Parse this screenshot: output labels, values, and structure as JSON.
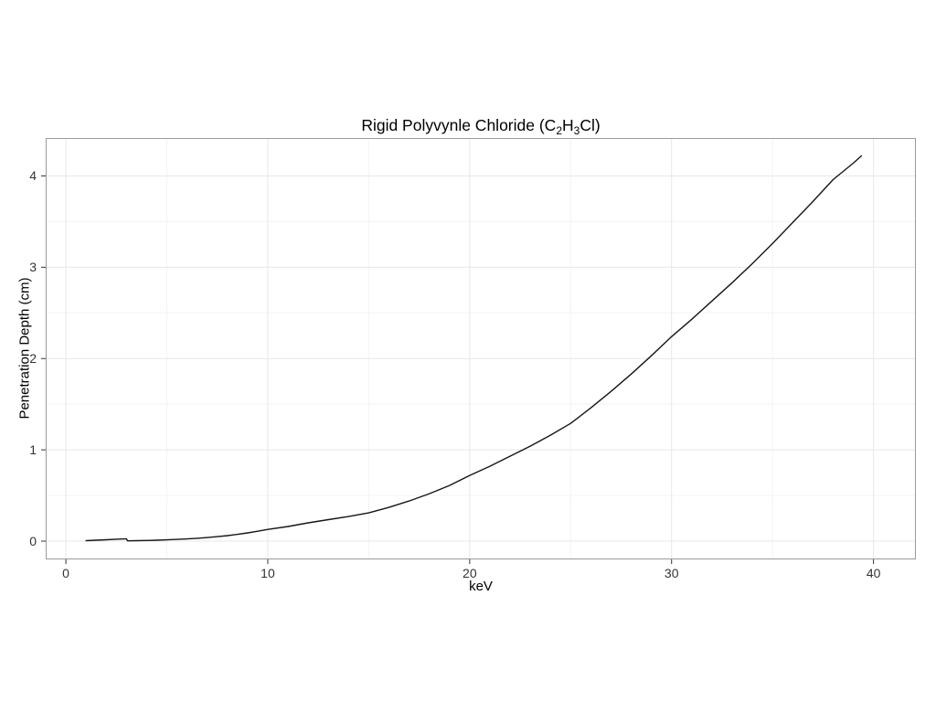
{
  "chart_data": {
    "type": "line",
    "title": "Rigid Polyvynle Chloride (C2H3Cl)",
    "title_parts": {
      "pre": "Rigid Polyvynle Chloride (C",
      "sub1": "2",
      "mid": "H",
      "sub2": "3",
      "post": "Cl)"
    },
    "xlabel": "keV",
    "ylabel": "Penetration Depth (cm)",
    "xlim": [
      -1.0,
      42.1
    ],
    "ylim": [
      -0.2,
      4.415
    ],
    "x_ticks": [
      "0",
      "10",
      "20",
      "30",
      "40"
    ],
    "x_tick_values": [
      0,
      10,
      20,
      30,
      40
    ],
    "y_ticks": [
      "0",
      "1",
      "2",
      "3",
      "4"
    ],
    "y_tick_values": [
      0,
      1,
      2,
      3,
      4
    ],
    "x_minor_values": [
      5,
      15,
      25,
      35
    ],
    "y_minor_values": [
      0.5,
      1.5,
      2.5,
      3.5
    ],
    "grid": "on",
    "legend": "none",
    "series": [
      {
        "name": "penetration-depth",
        "color": "#161616",
        "points": [
          [
            1,
            0.005
          ],
          [
            1.5,
            0.01
          ],
          [
            2,
            0.015
          ],
          [
            2.5,
            0.021
          ],
          [
            3.0,
            0.026
          ],
          [
            3.05,
            0.003
          ],
          [
            3.5,
            0.005
          ],
          [
            4,
            0.007
          ],
          [
            4.5,
            0.01
          ],
          [
            5,
            0.014
          ],
          [
            5.5,
            0.019
          ],
          [
            6,
            0.024
          ],
          [
            6.5,
            0.031
          ],
          [
            7,
            0.039
          ],
          [
            7.5,
            0.049
          ],
          [
            8,
            0.06
          ],
          [
            8.5,
            0.074
          ],
          [
            9,
            0.09
          ],
          [
            9.5,
            0.108
          ],
          [
            10,
            0.128
          ],
          [
            11,
            0.16
          ],
          [
            12,
            0.2
          ],
          [
            13,
            0.235
          ],
          [
            14,
            0.27
          ],
          [
            15,
            0.31
          ],
          [
            16,
            0.37
          ],
          [
            17,
            0.44
          ],
          [
            18,
            0.52
          ],
          [
            19,
            0.61
          ],
          [
            20,
            0.72
          ],
          [
            21,
            0.82
          ],
          [
            22,
            0.93
          ],
          [
            23,
            1.04
          ],
          [
            24,
            1.16
          ],
          [
            25,
            1.29
          ],
          [
            26,
            1.46
          ],
          [
            27,
            1.64
          ],
          [
            28,
            1.83
          ],
          [
            29,
            2.03
          ],
          [
            30,
            2.24
          ],
          [
            31,
            2.43
          ],
          [
            32,
            2.63
          ],
          [
            33,
            2.83
          ],
          [
            34,
            3.04
          ],
          [
            35,
            3.26
          ],
          [
            36,
            3.49
          ],
          [
            37,
            3.72
          ],
          [
            38,
            3.96
          ],
          [
            39,
            4.14
          ],
          [
            39.4,
            4.22
          ]
        ]
      }
    ]
  },
  "colors": {
    "background": "#ffffff",
    "panel_background": "#ffffff",
    "panel_border": "#9b9b9b",
    "grid_major": "#e7e7e7",
    "grid_minor": "#f3f3f3",
    "line": "#161616",
    "tick_mark": "#333333",
    "tick_label": "#333333",
    "text": "#000000"
  }
}
